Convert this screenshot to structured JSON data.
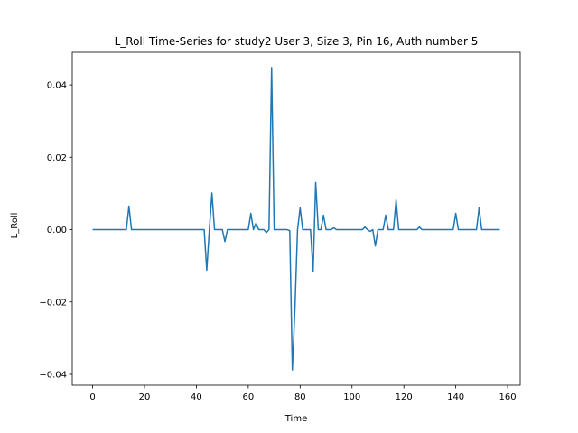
{
  "chart_data": {
    "type": "line",
    "title": "L_Roll Time-Series for study2 User 3, Size 3, Pin 16, Auth number 5",
    "xlabel": "Time",
    "ylabel": "L_Roll",
    "xlim": [
      -7.85,
      164.85
    ],
    "ylim": [
      -0.043,
      0.049
    ],
    "xticks": [
      0,
      20,
      40,
      60,
      80,
      100,
      120,
      140,
      160
    ],
    "yticks": [
      -0.04,
      -0.02,
      0.0,
      0.02,
      0.04
    ],
    "ytick_labels": [
      "−0.04",
      "−0.02",
      "0.00",
      "0.02",
      "0.04"
    ],
    "grid": false,
    "series": [
      {
        "color": "#1f77b4",
        "points": [
          [
            0,
            0
          ],
          [
            13,
            0
          ],
          [
            14,
            0.0065
          ],
          [
            15,
            0
          ],
          [
            43,
            0
          ],
          [
            44,
            -0.0112
          ],
          [
            45,
            0
          ],
          [
            46,
            0.0101
          ],
          [
            47,
            0
          ],
          [
            50,
            0
          ],
          [
            51,
            -0.0033
          ],
          [
            52,
            0
          ],
          [
            60,
            0
          ],
          [
            61,
            0.0045
          ],
          [
            62,
            0
          ],
          [
            63,
            0.0018
          ],
          [
            64,
            0
          ],
          [
            66,
            0
          ],
          [
            67,
            -0.0008
          ],
          [
            68,
            0
          ],
          [
            69,
            0.0448
          ],
          [
            70,
            0
          ],
          [
            75,
            0
          ],
          [
            76,
            -0.0003
          ],
          [
            77,
            -0.0388
          ],
          [
            78,
            -0.0218
          ],
          [
            79,
            0
          ],
          [
            80,
            0.006
          ],
          [
            81,
            0
          ],
          [
            84,
            0
          ],
          [
            85,
            -0.0116
          ],
          [
            86,
            0.013
          ],
          [
            87,
            0
          ],
          [
            88,
            0
          ],
          [
            89,
            0.004
          ],
          [
            90,
            0
          ],
          [
            92,
            0
          ],
          [
            93,
            0.0005
          ],
          [
            94,
            0
          ],
          [
            104,
            0
          ],
          [
            105,
            0.0007
          ],
          [
            106,
            0
          ],
          [
            107,
            -0.0005
          ],
          [
            108,
            0
          ],
          [
            109,
            -0.0045
          ],
          [
            110,
            0
          ],
          [
            112,
            0
          ],
          [
            113,
            0.004
          ],
          [
            114,
            0
          ],
          [
            116,
            0
          ],
          [
            117,
            0.0082
          ],
          [
            118,
            0
          ],
          [
            125,
            0
          ],
          [
            126,
            0.0007
          ],
          [
            127,
            0
          ],
          [
            139,
            0
          ],
          [
            140,
            0.0045
          ],
          [
            141,
            0
          ],
          [
            148,
            0
          ],
          [
            149,
            0.006
          ],
          [
            150,
            0
          ],
          [
            157,
            0
          ]
        ]
      }
    ]
  }
}
